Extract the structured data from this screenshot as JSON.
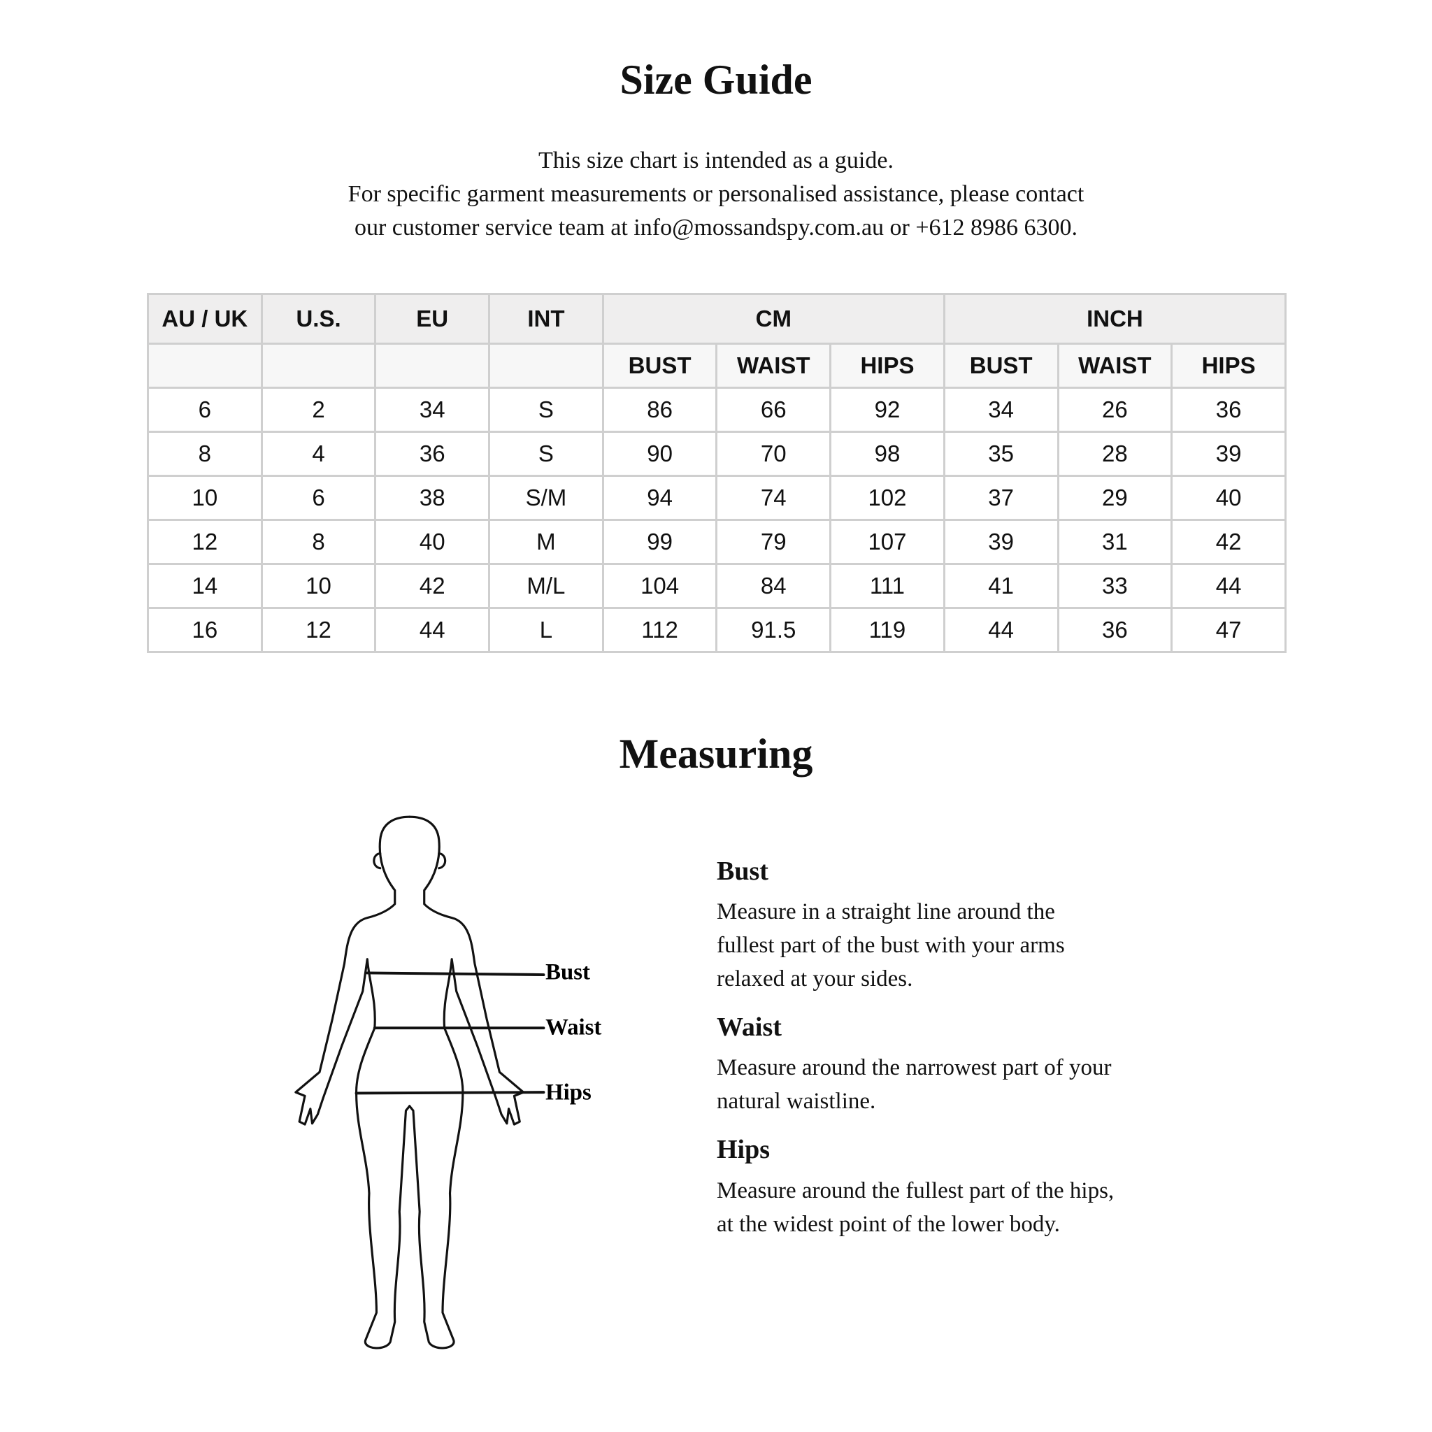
{
  "title": "Size Guide",
  "intro": [
    "This size chart is intended as a guide.",
    "For specific garment measurements or personalised assistance, please contact",
    "our customer service team at info@mossandspy.com.au or +612 8986 6300."
  ],
  "table": {
    "group_headers": [
      "AU / UK",
      "U.S.",
      "EU",
      "INT",
      "CM",
      "INCH"
    ],
    "sub_headers": [
      "BUST",
      "WAIST",
      "HIPS",
      "BUST",
      "WAIST",
      "HIPS"
    ],
    "rows": [
      [
        "6",
        "2",
        "34",
        "S",
        "86",
        "66",
        "92",
        "34",
        "26",
        "36"
      ],
      [
        "8",
        "4",
        "36",
        "S",
        "90",
        "70",
        "98",
        "35",
        "28",
        "39"
      ],
      [
        "10",
        "6",
        "38",
        "S/M",
        "94",
        "74",
        "102",
        "37",
        "29",
        "40"
      ],
      [
        "12",
        "8",
        "40",
        "M",
        "99",
        "79",
        "107",
        "39",
        "31",
        "42"
      ],
      [
        "14",
        "10",
        "42",
        "M/L",
        "104",
        "84",
        "111",
        "41",
        "33",
        "44"
      ],
      [
        "16",
        "12",
        "44",
        "L",
        "112",
        "91.5",
        "119",
        "44",
        "36",
        "47"
      ]
    ]
  },
  "measuring": {
    "title": "Measuring",
    "figure_labels": [
      "Bust",
      "Waist",
      "Hips"
    ],
    "sections": [
      {
        "heading": "Bust",
        "lines": [
          "Measure in a straight line around the",
          "fullest part of the bust with your arms",
          "relaxed at your sides."
        ]
      },
      {
        "heading": "Waist",
        "lines": [
          "Measure around the narrowest part of your",
          "natural waistline."
        ]
      },
      {
        "heading": "Hips",
        "lines": [
          "Measure around the fullest part of the hips,",
          "at the widest point of the lower body."
        ]
      }
    ]
  }
}
